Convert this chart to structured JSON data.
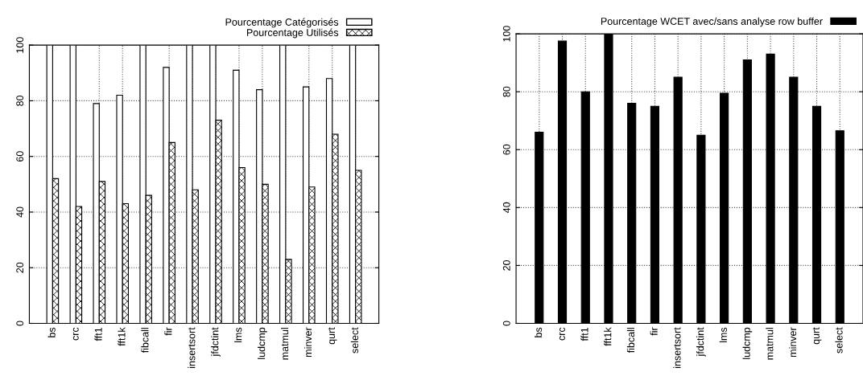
{
  "chart_data": [
    {
      "type": "bar",
      "categories": [
        "bs",
        "crc",
        "fft1",
        "fft1k",
        "fibcall",
        "fir",
        "insertsort",
        "jfdctint",
        "lms",
        "ludcmp",
        "matmul",
        "minver",
        "qurt",
        "select"
      ],
      "series": [
        {
          "name": "Pourcentage Catégorisés",
          "color": "#ffffff",
          "values": [
            100,
            100,
            79,
            82,
            100,
            92,
            100,
            100,
            91,
            84,
            100,
            85,
            88,
            100
          ]
        },
        {
          "name": "Pourcentage Utilisés",
          "color": "#000000",
          "values": [
            52,
            42,
            51,
            43,
            46,
            65,
            48,
            73,
            56,
            50,
            23,
            49,
            68,
            55
          ]
        }
      ],
      "ylim": [
        0,
        100
      ],
      "yticks": [
        0,
        20,
        40,
        60,
        80,
        100
      ],
      "grid": true,
      "legend": "top right"
    },
    {
      "type": "bar",
      "categories": [
        "bs",
        "crc",
        "fft1",
        "fft1k",
        "fibcall",
        "fir",
        "insertsort",
        "jfdctint",
        "lms",
        "ludcmp",
        "matmul",
        "minver",
        "qurt",
        "select"
      ],
      "series": [
        {
          "name": "Pourcentage WCET avec/sans analyse row buffer",
          "color": "#000000",
          "values": [
            66,
            97.5,
            80,
            100,
            76,
            75,
            85,
            65,
            79.5,
            91,
            93,
            85,
            75,
            66.5
          ]
        }
      ],
      "ylim": [
        0,
        100
      ],
      "yticks": [
        0,
        20,
        40,
        60,
        80,
        100
      ],
      "grid": true,
      "legend": "top right"
    }
  ]
}
